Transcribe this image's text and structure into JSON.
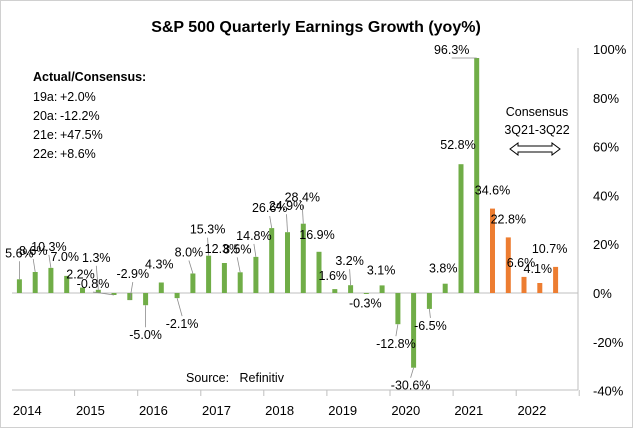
{
  "chart_data": {
    "type": "bar",
    "title": "S&P 500 Quarterly Earnings Growth (yoy%)",
    "ylim": [
      -40,
      100
    ],
    "y_ticks": [
      "-40%",
      "-20%",
      "0%",
      "20%",
      "40%",
      "60%",
      "80%",
      "100%"
    ],
    "y_axis_side": "right",
    "x_ticks": [
      "2014",
      "2015",
      "2016",
      "2017",
      "2018",
      "2019",
      "2020",
      "2021",
      "2022"
    ],
    "grid": false,
    "series": [
      {
        "kind": "actual",
        "color": "#70AD47",
        "values": [
          5.6,
          8.6,
          10.3,
          7.0,
          2.2,
          1.3,
          -0.8,
          -2.9,
          -5.0,
          4.3,
          -2.1,
          8.0,
          15.3,
          12.3,
          8.5,
          14.8,
          26.6,
          24.9,
          28.4,
          16.9,
          1.6,
          3.2,
          -0.3,
          3.1,
          -12.8,
          -30.6,
          -6.5,
          3.8,
          52.8,
          96.3
        ],
        "labels": [
          "5.6%",
          "8.6%",
          "10.3%",
          "7.0%",
          "2.2%",
          "1.3%",
          "-0.8%",
          "-2.9%",
          "-5.0%",
          "4.3%",
          "-2.1%",
          "8.0%",
          "15.3%",
          "12.3%",
          "8.5%",
          "14.8%",
          "26.6%",
          "24.9%",
          "28.4%",
          "16.9%",
          "1.6%",
          "3.2%",
          "-0.3%",
          "3.1%",
          "-12.8%",
          "-30.6%",
          "-6.5%",
          "3.8%",
          "52.8%",
          "96.3%"
        ]
      },
      {
        "kind": "consensus",
        "color": "#ED7D31",
        "values": [
          34.6,
          22.8,
          6.6,
          4.1,
          10.7
        ],
        "labels": [
          "34.6%",
          "22.8%",
          "6.6%",
          "4.1%",
          "10.7%"
        ]
      }
    ],
    "annotations": {
      "source": "Source:   Refinitiv",
      "consensus_line1": "Consensus",
      "consensus_line2": "3Q21-3Q22",
      "legend_heading": "Actual/Consensus:",
      "legend_rows": [
        {
          "key": "19a:",
          "value": "+2.0%"
        },
        {
          "key": "20a:",
          "value": "-12.2%"
        },
        {
          "key": "21e:",
          "value": "+47.5%"
        },
        {
          "key": "22e:",
          "value": "+8.6%"
        }
      ]
    }
  }
}
